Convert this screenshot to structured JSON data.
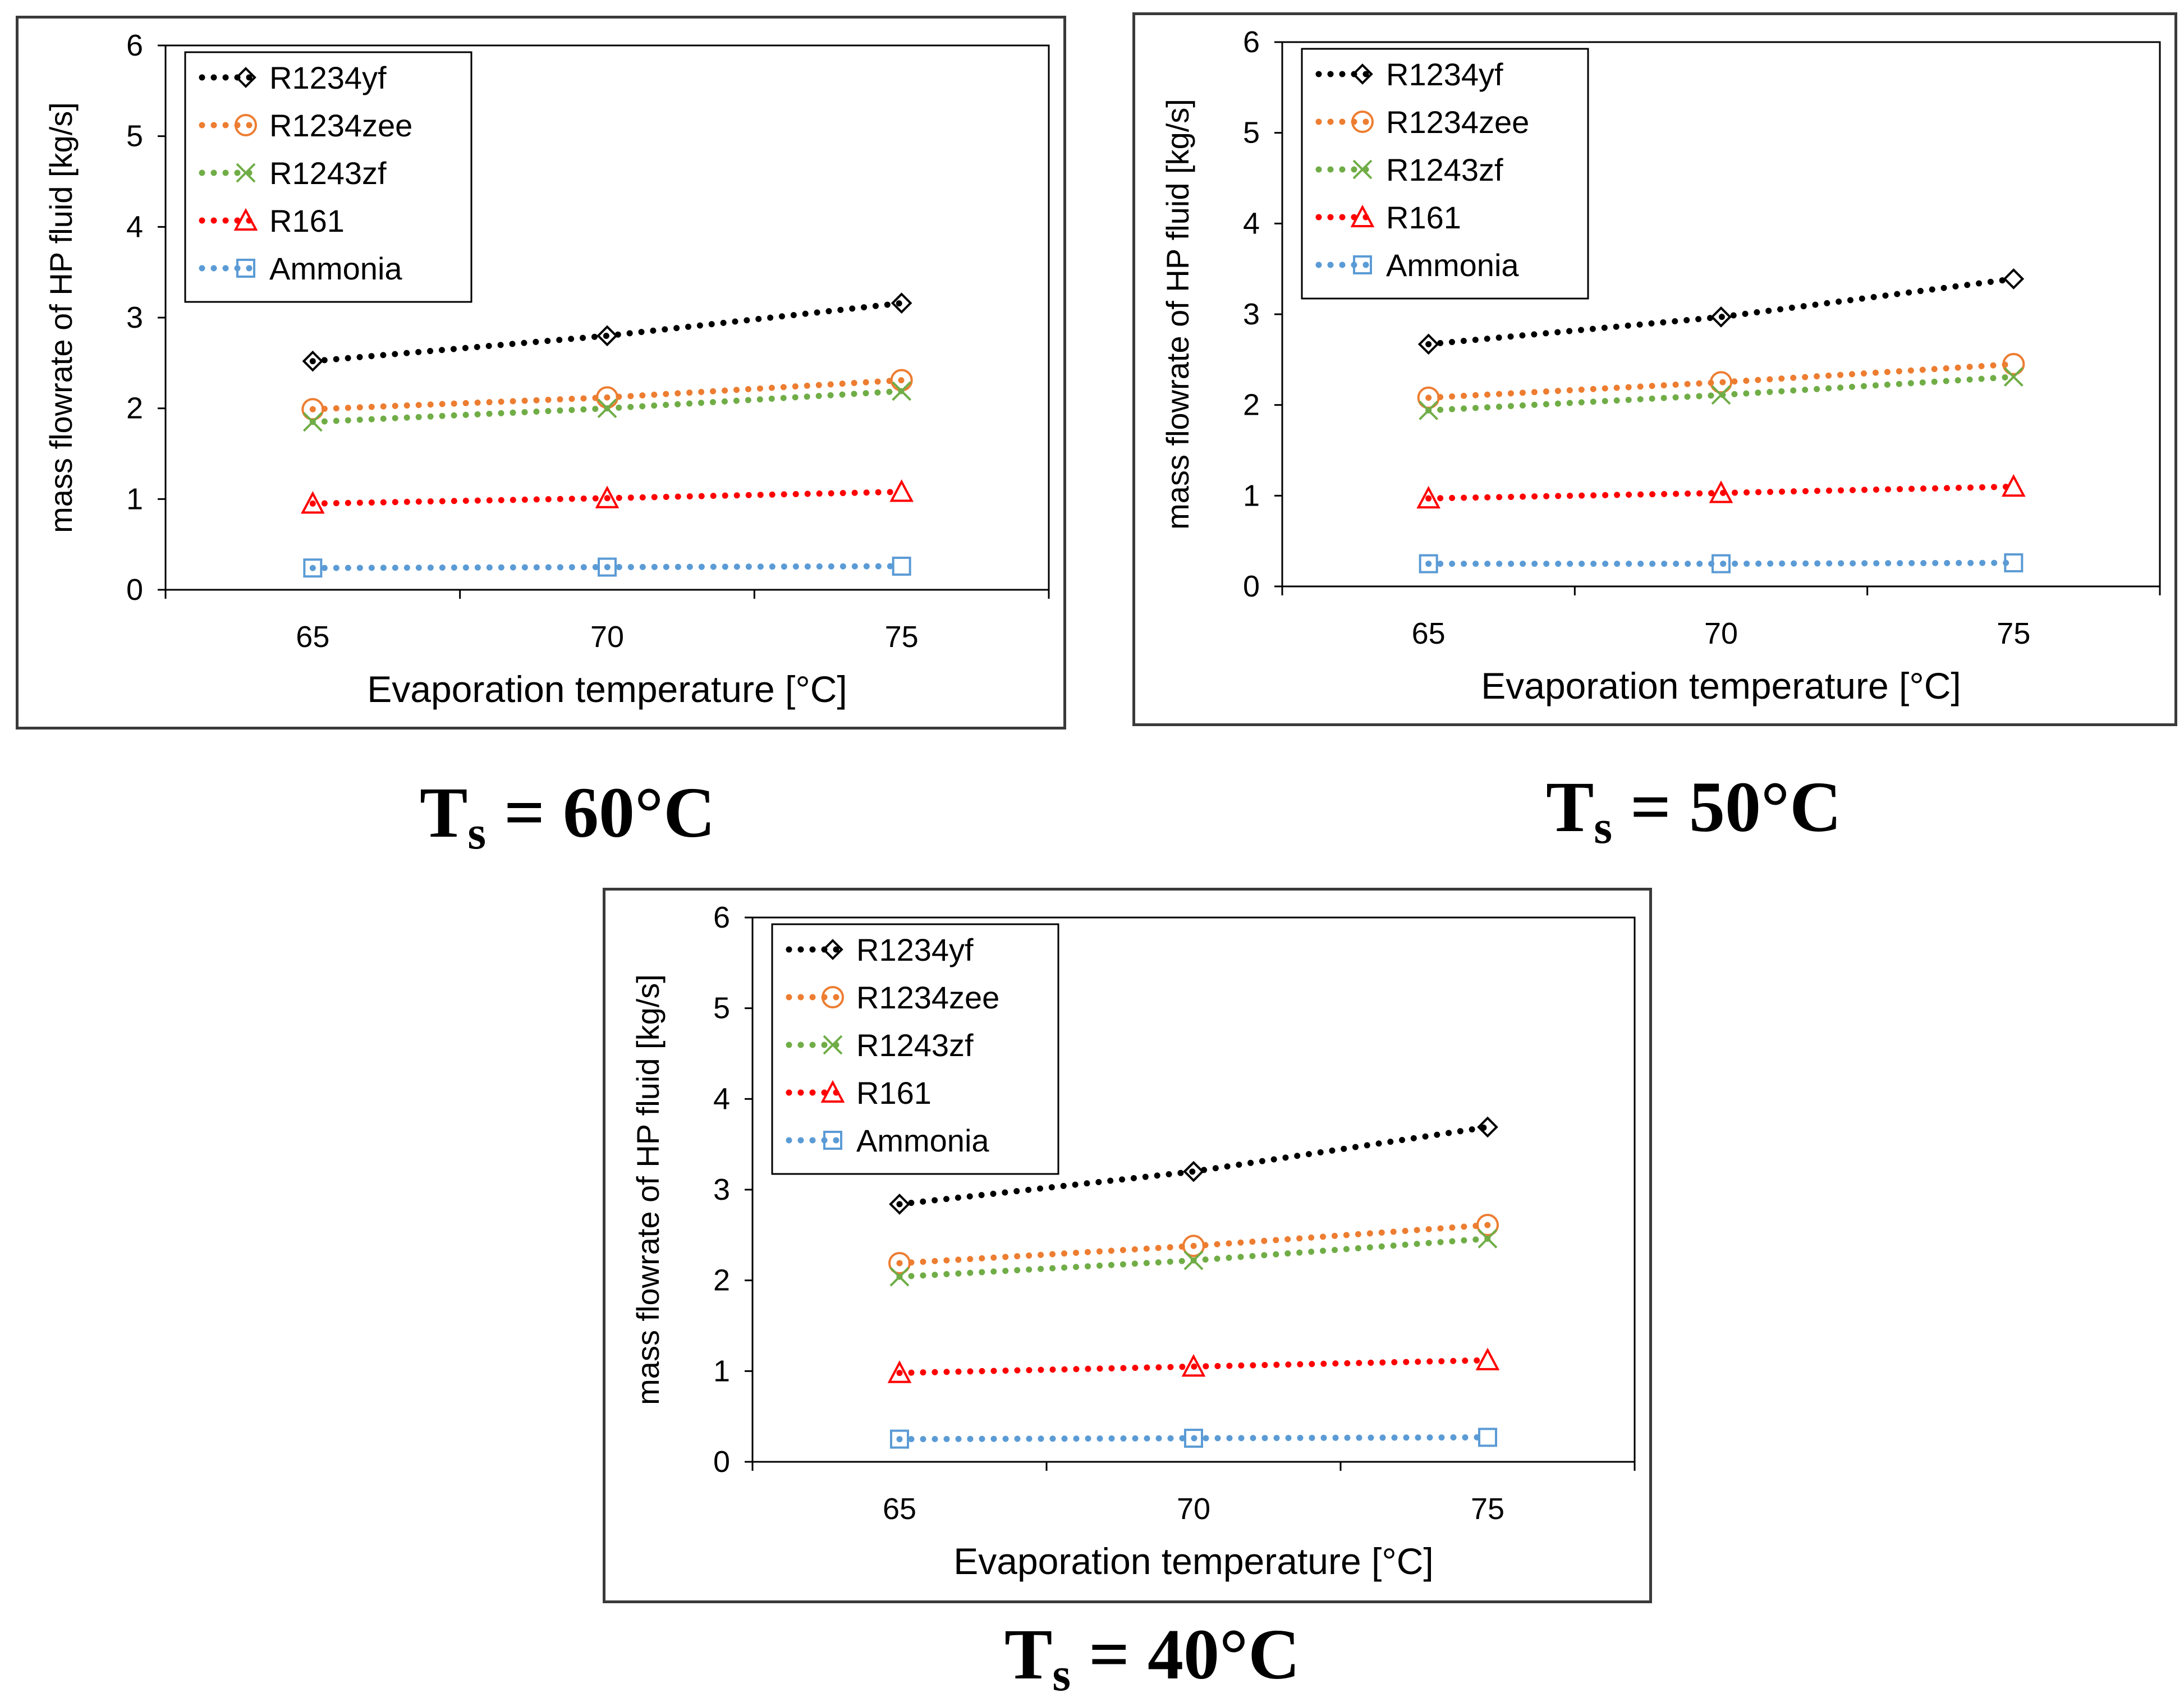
{
  "chart_data": [
    {
      "type": "line",
      "caption": {
        "symbol": "T",
        "subscript": "s",
        "text": " = 60°C"
      },
      "xlabel": "Evaporation temperature [°C]",
      "ylabel": "mass flowrate of HP fluid [kg/s]",
      "x": [
        65,
        70,
        75
      ],
      "xlim": [
        62.5,
        77.5
      ],
      "xticks": [
        65,
        70,
        75
      ],
      "ylim": [
        0,
        6
      ],
      "yticks": [
        0,
        1,
        2,
        3,
        4,
        5,
        6
      ],
      "grid": false,
      "legend_position": "top-left",
      "series": [
        {
          "name": "R1234yf",
          "values": [
            2.52,
            2.8,
            3.16
          ],
          "color": "#000000",
          "marker": "diamond"
        },
        {
          "name": "R1234zee",
          "values": [
            1.99,
            2.12,
            2.31
          ],
          "color": "#ED7D31",
          "marker": "circle"
        },
        {
          "name": "R1243zf",
          "values": [
            1.85,
            2.0,
            2.19
          ],
          "color": "#70AD47",
          "marker": "cross"
        },
        {
          "name": "R161",
          "values": [
            0.95,
            1.01,
            1.08
          ],
          "color": "#FF0000",
          "marker": "triangle"
        },
        {
          "name": "Ammonia",
          "values": [
            0.24,
            0.25,
            0.26
          ],
          "color": "#5B9BD5",
          "marker": "square"
        }
      ]
    },
    {
      "type": "line",
      "caption": {
        "symbol": "T",
        "subscript": "s",
        "text": " = 50°C"
      },
      "xlabel": "Evaporation temperature [°C]",
      "ylabel": "mass flowrate of HP fluid [kg/s]",
      "x": [
        65,
        70,
        75
      ],
      "xlim": [
        62.5,
        77.5
      ],
      "xticks": [
        65,
        70,
        75
      ],
      "ylim": [
        0,
        6
      ],
      "yticks": [
        0,
        1,
        2,
        3,
        4,
        5,
        6
      ],
      "grid": false,
      "legend_position": "top-left",
      "series": [
        {
          "name": "R1234yf",
          "values": [
            2.67,
            2.97,
            3.39
          ],
          "color": "#000000",
          "marker": "diamond"
        },
        {
          "name": "R1234zee",
          "values": [
            2.08,
            2.25,
            2.45
          ],
          "color": "#ED7D31",
          "marker": "circle"
        },
        {
          "name": "R1243zf",
          "values": [
            1.94,
            2.11,
            2.31
          ],
          "color": "#70AD47",
          "marker": "cross"
        },
        {
          "name": "R161",
          "values": [
            0.97,
            1.03,
            1.1
          ],
          "color": "#FF0000",
          "marker": "triangle"
        },
        {
          "name": "Ammonia",
          "values": [
            0.25,
            0.25,
            0.26
          ],
          "color": "#5B9BD5",
          "marker": "square"
        }
      ]
    },
    {
      "type": "line",
      "caption": {
        "symbol": "T",
        "subscript": "s",
        "text": " = 40°C"
      },
      "xlabel": "Evaporation temperature [°C]",
      "ylabel": "mass flowrate of HP fluid [kg/s]",
      "x": [
        65,
        70,
        75
      ],
      "xlim": [
        62.5,
        77.5
      ],
      "xticks": [
        65,
        70,
        75
      ],
      "ylim": [
        0,
        6
      ],
      "yticks": [
        0,
        1,
        2,
        3,
        4,
        5,
        6
      ],
      "grid": false,
      "legend_position": "top-left",
      "series": [
        {
          "name": "R1234yf",
          "values": [
            2.84,
            3.2,
            3.69
          ],
          "color": "#000000",
          "marker": "diamond"
        },
        {
          "name": "R1234zee",
          "values": [
            2.19,
            2.38,
            2.61
          ],
          "color": "#ED7D31",
          "marker": "circle"
        },
        {
          "name": "R1243zf",
          "values": [
            2.04,
            2.22,
            2.46
          ],
          "color": "#70AD47",
          "marker": "cross"
        },
        {
          "name": "R161",
          "values": [
            0.98,
            1.05,
            1.12
          ],
          "color": "#FF0000",
          "marker": "triangle"
        },
        {
          "name": "Ammonia",
          "values": [
            0.25,
            0.26,
            0.27
          ],
          "color": "#5B9BD5",
          "marker": "square"
        }
      ]
    }
  ]
}
